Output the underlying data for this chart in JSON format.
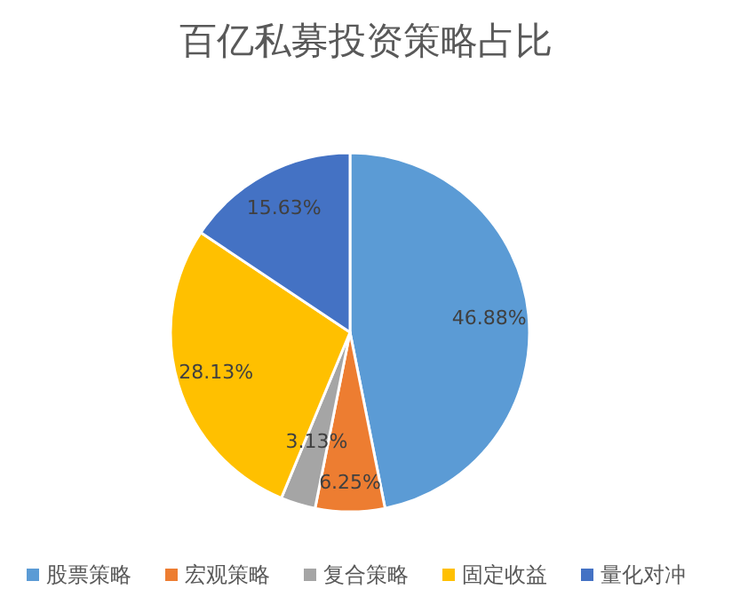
{
  "chart_data": {
    "type": "pie",
    "title": "百亿私募投资策略占比",
    "categories": [
      "股票策略",
      "宏观策略",
      "复合策略",
      "固定收益",
      "量化对冲"
    ],
    "values": [
      46.88,
      6.25,
      3.13,
      28.13,
      15.63
    ],
    "value_labels": [
      "46.88%",
      "6.25%",
      "3.13%",
      "28.13%",
      "15.63%"
    ],
    "colors": [
      "#5b9bd5",
      "#ed7d31",
      "#a5a5a5",
      "#ffc000",
      "#4472c4"
    ],
    "legend": "bottom"
  }
}
